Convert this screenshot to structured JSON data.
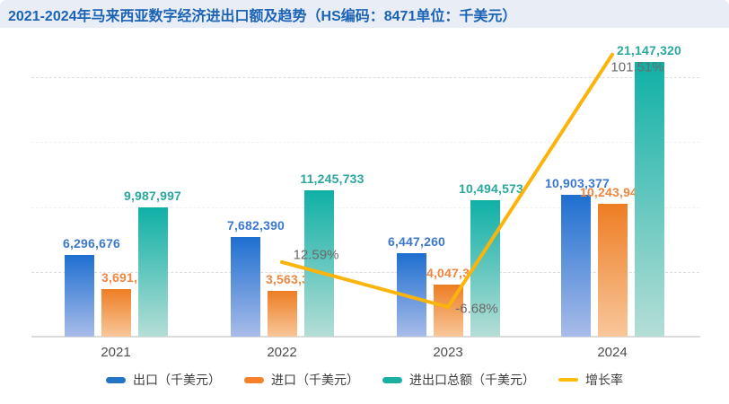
{
  "title_bar": {
    "title": "2021-2024年马来西亚数字经济进出口额及趋势（HS编码：8471单位：千美元）"
  },
  "colors": {
    "title_text": "#1b63b5",
    "title_bg": "#e9edf6",
    "export_top": "#1e6fd0",
    "export_bottom": "#a9bce9",
    "export_label": "#3b78cd",
    "export_legend": "#2474c4",
    "import_top": "#ee7d23",
    "import_bottom": "#f8c79b",
    "import_label": "#f0863f",
    "import_legend": "#f5812b",
    "total_top": "#0fb0a6",
    "total_bottom": "#b5ded6",
    "total_label": "#2aa89d",
    "total_legend": "#19b0a2",
    "growth_line": "#fbb40b",
    "growth_label": "#6a6a6a",
    "growth_legend": "#fbbd0e",
    "axis_text": "#4d4d4d",
    "legend_text": "#3c3c3c",
    "grid": "#dcdcdc"
  },
  "chart_data": {
    "type": "bar",
    "subtype": "grouped bars with growth-rate line overlay",
    "title": "2021-2024年马来西亚数字经济进出口额及趋势（HS编码：8471单位：千美元）",
    "categories": [
      "2021",
      "2022",
      "2023",
      "2024"
    ],
    "series": [
      {
        "name": "出口（千美元）",
        "type": "bar",
        "values": [
          6296676,
          7682390,
          6447260,
          10903377
        ],
        "value_labels": [
          "6,296,676",
          "7,682,390",
          "6,447,260",
          "10,903,377"
        ]
      },
      {
        "name": "进口（千美元）",
        "type": "bar",
        "values": [
          3691321,
          3563343,
          4047313,
          10243943
        ],
        "value_labels": [
          "3,691,321",
          "3,563,343",
          "4,047,313",
          "10,243,943"
        ]
      },
      {
        "name": "进出口总额（千美元）",
        "type": "bar",
        "values": [
          9987997,
          11245733,
          10494573,
          21147320
        ],
        "value_labels": [
          "9,987,997",
          "11,245,733",
          "10,494,573",
          "21,147,320"
        ]
      },
      {
        "name": "增长率",
        "type": "line",
        "unit": "%",
        "values": [
          null,
          12.59,
          -6.68,
          101.51
        ],
        "value_labels": [
          null,
          "12.59%",
          "-6.68%",
          "101.51%"
        ]
      }
    ],
    "value_axis": {
      "min": 0,
      "gridline_step": 5000000,
      "max_visible_gridline": 20000000,
      "tick_labels_visible": false
    },
    "grid": "horizontal dashed",
    "legend_position": "bottom"
  }
}
